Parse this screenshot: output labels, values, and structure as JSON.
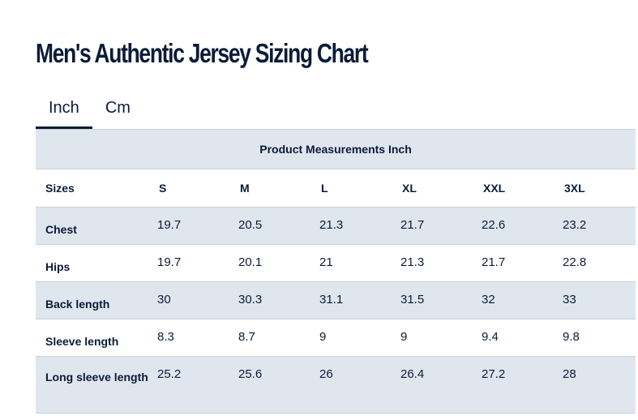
{
  "title": "Men's Authentic Jersey Sizing Chart",
  "tabs": [
    {
      "label": "Inch",
      "active": true
    },
    {
      "label": "Cm",
      "active": false
    }
  ],
  "table": {
    "caption": "Product Measurements Inch",
    "sizes_label": "Sizes",
    "sizes": [
      "S",
      "M",
      "L",
      "XL",
      "XXL",
      "3XL"
    ],
    "rows": [
      {
        "label": "Chest",
        "values": [
          "19.7",
          "20.5",
          "21.3",
          "21.7",
          "22.6",
          "23.2"
        ]
      },
      {
        "label": "Hips",
        "values": [
          "19.7",
          "20.1",
          "21",
          "21.3",
          "21.7",
          "22.8"
        ]
      },
      {
        "label": "Back length",
        "values": [
          "30",
          "30.3",
          "31.1",
          "31.5",
          "32",
          "33"
        ]
      },
      {
        "label": "Sleeve length",
        "values": [
          "8.3",
          "8.7",
          "9",
          "9",
          "9.4",
          "9.8"
        ]
      },
      {
        "label": "Long sleeve length",
        "values": [
          "25.2",
          "25.6",
          "26",
          "26.4",
          "27.2",
          "28"
        ]
      }
    ]
  },
  "colors": {
    "text": "#0b1c38",
    "row_shade": "#dfe6ee",
    "divider": "#c9d0d9"
  }
}
